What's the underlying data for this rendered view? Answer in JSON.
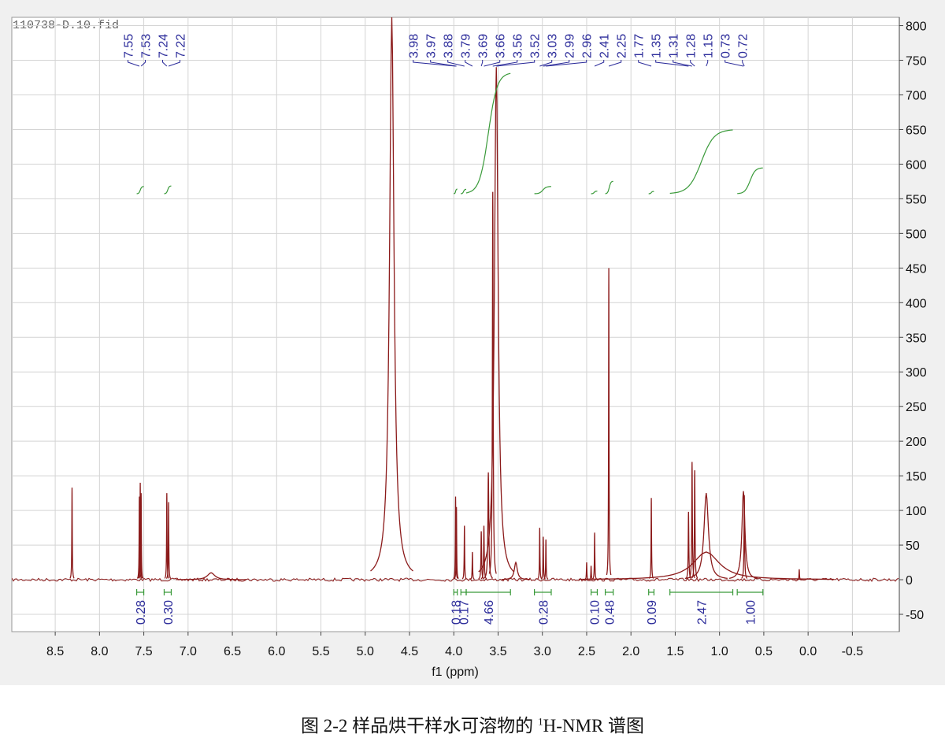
{
  "file_name": "110738-D.10.fid",
  "chart_data": {
    "type": "spectrum",
    "x_label": "f1 (ppm)",
    "xlim": [
      8.99,
      -1.03
    ],
    "xticks": [
      8.5,
      {
        "value": 8,
        "label": "8.0"
      },
      7.5,
      {
        "value": 7,
        "label": "7.0"
      },
      6.5,
      {
        "value": 6,
        "label": "6.0"
      },
      5.5,
      {
        "value": 5,
        "label": "5.0"
      },
      4.5,
      {
        "value": 4,
        "label": "4.0"
      },
      3.5,
      {
        "value": 3,
        "label": "3.0"
      },
      2.5,
      {
        "value": 2,
        "label": "2.0"
      },
      1.5,
      {
        "value": 1,
        "label": "1.0"
      },
      0.5,
      {
        "value": 0,
        "label": "0.0"
      },
      -0.5
    ],
    "ylim": [
      -75,
      812
    ],
    "yticks": [
      -50,
      0,
      50,
      100,
      150,
      200,
      250,
      300,
      350,
      400,
      450,
      500,
      550,
      600,
      650,
      700,
      750,
      800
    ],
    "grid": true,
    "color": "#8b1a1a",
    "peaks": {
      "ppm": [
        8.31,
        7.55,
        7.54,
        7.53,
        7.24,
        7.22,
        6.74,
        4.7,
        3.98,
        3.97,
        3.88,
        3.79,
        3.69,
        3.66,
        3.61,
        3.56,
        3.52,
        3.3,
        3.03,
        2.99,
        2.96,
        2.5,
        2.45,
        2.41,
        2.25,
        1.77,
        1.35,
        1.31,
        1.28,
        1.15,
        1.15,
        0.73,
        0.72,
        0.1
      ],
      "height": [
        133,
        120,
        140,
        125,
        125,
        112,
        10,
        812,
        120,
        105,
        78,
        40,
        70,
        78,
        155,
        560,
        740,
        25,
        75,
        62,
        58,
        25,
        20,
        68,
        450,
        118,
        98,
        170,
        158,
        125,
        40,
        128,
        122,
        15
      ],
      "width": [
        0.003,
        0.003,
        0.003,
        0.003,
        0.003,
        0.003,
        0.05,
        0.03,
        0.003,
        0.003,
        0.003,
        0.003,
        0.004,
        0.004,
        0.006,
        0.005,
        0.025,
        0.02,
        0.003,
        0.003,
        0.003,
        0.003,
        0.003,
        0.003,
        0.003,
        0.003,
        0.004,
        0.004,
        0.004,
        0.03,
        0.18,
        0.02,
        0.004,
        0.003
      ]
    },
    "peak_labels": [
      7.55,
      7.53,
      7.24,
      7.22,
      3.98,
      3.97,
      3.88,
      3.79,
      3.69,
      3.66,
      3.56,
      3.52,
      3.03,
      2.99,
      2.96,
      2.41,
      2.25,
      1.77,
      1.35,
      1.31,
      1.28,
      1.15,
      0.73,
      0.72
    ],
    "peak_label_color": "#2b2b9a",
    "integral_from": [
      7.58,
      7.27,
      4.0,
      3.92,
      3.86,
      3.09,
      2.45,
      2.29,
      1.8,
      1.56,
      0.8
    ],
    "integral_to": [
      7.5,
      7.19,
      3.96,
      3.86,
      3.36,
      2.9,
      2.38,
      2.2,
      1.74,
      0.85,
      0.51
    ],
    "integral_values": [
      0.28,
      0.3,
      0.18,
      0.17,
      4.66,
      0.28,
      0.1,
      0.48,
      0.09,
      2.47,
      1
    ],
    "integral_value_labels": [
      "0.28",
      "0.30",
      "0.18",
      "0.17",
      "4.66",
      "0.28",
      "0.10",
      "0.48",
      "0.09",
      "2.47",
      "1.00"
    ],
    "integral_color": "#3a9a3a"
  },
  "caption": {
    "prefix": "图 2-2  样品烘干样水可溶物的",
    "sup": "1",
    "suffix": "H-NMR 谱图"
  }
}
